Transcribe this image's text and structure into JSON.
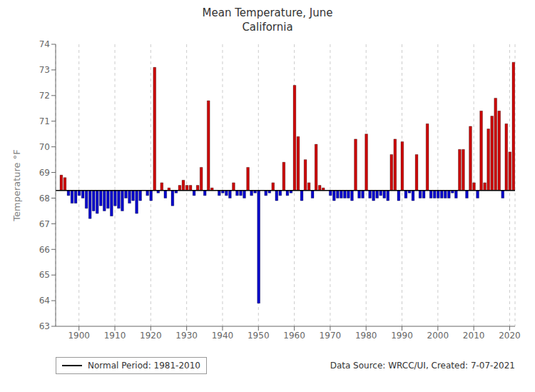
{
  "chart_data": {
    "type": "bar",
    "title": "Mean Temperature, June\nCalifornia",
    "ylabel": "Temperature °F",
    "annotations": [
      "Data Source: WRCC/UI, Created: 7-07-2021"
    ],
    "legend": "lower left",
    "grid": "x",
    "baseline": {
      "name": "Normal Period: 1981-2010",
      "value": 68.3,
      "color": "#000000"
    },
    "xlim": [
      1893.5,
      2021.5
    ],
    "xticks": [
      1900,
      1910,
      1920,
      1930,
      1940,
      1950,
      1960,
      1970,
      1980,
      1990,
      2000,
      2010,
      2020
    ],
    "ylim": [
      63,
      74
    ],
    "yticks": [
      63,
      64,
      65,
      66,
      67,
      68,
      69,
      70,
      71,
      72,
      73,
      74
    ],
    "x": [
      1895,
      1896,
      1897,
      1898,
      1899,
      1900,
      1901,
      1902,
      1903,
      1904,
      1905,
      1906,
      1907,
      1908,
      1909,
      1910,
      1911,
      1912,
      1913,
      1914,
      1915,
      1916,
      1917,
      1918,
      1919,
      1920,
      1921,
      1922,
      1923,
      1924,
      1925,
      1926,
      1927,
      1928,
      1929,
      1930,
      1931,
      1932,
      1933,
      1934,
      1935,
      1936,
      1937,
      1938,
      1939,
      1940,
      1941,
      1942,
      1943,
      1944,
      1945,
      1946,
      1947,
      1948,
      1949,
      1950,
      1951,
      1952,
      1953,
      1954,
      1955,
      1956,
      1957,
      1958,
      1959,
      1960,
      1961,
      1962,
      1963,
      1964,
      1965,
      1966,
      1967,
      1968,
      1969,
      1970,
      1971,
      1972,
      1973,
      1974,
      1975,
      1976,
      1977,
      1978,
      1979,
      1980,
      1981,
      1982,
      1983,
      1984,
      1985,
      1986,
      1987,
      1988,
      1989,
      1990,
      1991,
      1992,
      1993,
      1994,
      1995,
      1996,
      1997,
      1998,
      1999,
      2000,
      2001,
      2002,
      2003,
      2004,
      2005,
      2006,
      2007,
      2008,
      2009,
      2010,
      2011,
      2012,
      2013,
      2014,
      2015,
      2016,
      2017,
      2018,
      2019,
      2020,
      2021
    ],
    "values": [
      68.9,
      68.8,
      68.1,
      67.8,
      67.8,
      68.1,
      68.0,
      67.6,
      67.2,
      67.5,
      67.4,
      67.7,
      67.5,
      67.6,
      67.3,
      67.7,
      67.6,
      67.5,
      68.0,
      67.8,
      67.9,
      67.4,
      67.9,
      68.3,
      68.1,
      67.9,
      73.1,
      68.2,
      68.6,
      68.0,
      68.4,
      67.7,
      68.2,
      68.5,
      68.7,
      68.5,
      68.5,
      68.1,
      68.5,
      69.2,
      68.1,
      71.8,
      68.4,
      68.3,
      68.1,
      68.2,
      68.1,
      68.0,
      68.6,
      68.1,
      68.1,
      68.0,
      69.2,
      68.1,
      68.2,
      63.9,
      68.3,
      68.1,
      68.2,
      68.6,
      67.9,
      68.1,
      69.4,
      68.1,
      68.2,
      72.4,
      70.4,
      67.9,
      69.5,
      68.6,
      68.0,
      70.1,
      68.5,
      68.4,
      68.3,
      68.1,
      67.9,
      68.0,
      68.0,
      68.0,
      68.0,
      67.9,
      70.3,
      68.0,
      68.0,
      70.5,
      68.0,
      67.9,
      68.0,
      68.1,
      68.0,
      67.9,
      69.7,
      70.3,
      67.9,
      70.2,
      68.0,
      68.2,
      67.9,
      69.7,
      68.0,
      68.0,
      70.9,
      68.0,
      68.0,
      68.0,
      68.0,
      68.0,
      68.0,
      68.2,
      68.0,
      69.9,
      69.9,
      68.0,
      70.8,
      68.6,
      68.0,
      71.4,
      68.6,
      70.7,
      71.2,
      71.9,
      71.4,
      68.0,
      70.9,
      69.8,
      73.3
    ],
    "colors": [
      "#cc0000",
      "#cc0000",
      "#0000cc",
      "#0000cc",
      "#0000cc",
      "#0000cc",
      "#0000cc",
      "#0000cc",
      "#0000cc",
      "#0000cc",
      "#0000cc",
      "#0000cc",
      "#0000cc",
      "#0000cc",
      "#0000cc",
      "#0000cc",
      "#0000cc",
      "#0000cc",
      "#0000cc",
      "#0000cc",
      "#0000cc",
      "#0000cc",
      "#0000cc",
      "#cc0000",
      "#0000cc",
      "#0000cc",
      "#cc0000",
      "#0000cc",
      "#cc0000",
      "#0000cc",
      "#cc0000",
      "#0000cc",
      "#0000cc",
      "#cc0000",
      "#cc0000",
      "#cc0000",
      "#cc0000",
      "#0000cc",
      "#cc0000",
      "#cc0000",
      "#0000cc",
      "#cc0000",
      "#cc0000",
      "#cc0000",
      "#0000cc",
      "#0000cc",
      "#0000cc",
      "#0000cc",
      "#cc0000",
      "#0000cc",
      "#0000cc",
      "#0000cc",
      "#cc0000",
      "#0000cc",
      "#0000cc",
      "#0000cc",
      "#cc0000",
      "#0000cc",
      "#0000cc",
      "#cc0000",
      "#0000cc",
      "#0000cc",
      "#cc0000",
      "#0000cc",
      "#0000cc",
      "#cc0000",
      "#cc0000",
      "#0000cc",
      "#cc0000",
      "#cc0000",
      "#0000cc",
      "#cc0000",
      "#cc0000",
      "#cc0000",
      "#cc0000",
      "#0000cc",
      "#0000cc",
      "#0000cc",
      "#0000cc",
      "#0000cc",
      "#0000cc",
      "#0000cc",
      "#cc0000",
      "#0000cc",
      "#0000cc",
      "#cc0000",
      "#0000cc",
      "#0000cc",
      "#0000cc",
      "#0000cc",
      "#0000cc",
      "#0000cc",
      "#cc0000",
      "#cc0000",
      "#0000cc",
      "#cc0000",
      "#0000cc",
      "#0000cc",
      "#0000cc",
      "#cc0000",
      "#0000cc",
      "#0000cc",
      "#cc0000",
      "#0000cc",
      "#0000cc",
      "#0000cc",
      "#0000cc",
      "#0000cc",
      "#0000cc",
      "#0000cc",
      "#0000cc",
      "#cc0000",
      "#cc0000",
      "#0000cc",
      "#cc0000",
      "#cc0000",
      "#0000cc",
      "#cc0000",
      "#cc0000",
      "#cc0000",
      "#cc0000",
      "#cc0000",
      "#cc0000",
      "#0000cc",
      "#cc0000",
      "#cc0000",
      "#cc0000"
    ]
  }
}
